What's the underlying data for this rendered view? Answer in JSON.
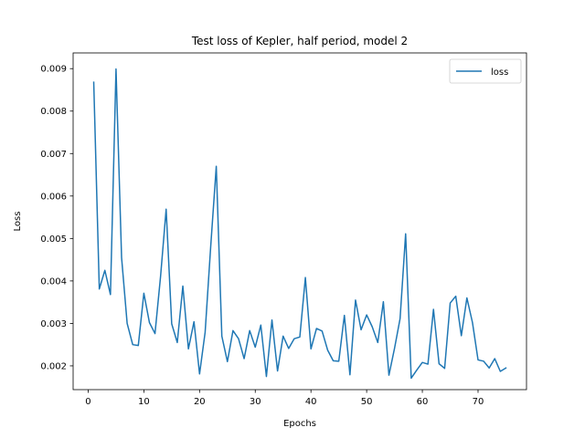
{
  "chart_data": {
    "type": "line",
    "title": "Test loss of Kepler, half period, model 2",
    "xlabel": "Epochs",
    "ylabel": "Loss",
    "xlim": [
      -2.7,
      78.7
    ],
    "ylim": [
      0.00144,
      0.00937
    ],
    "xticks": [
      0,
      10,
      20,
      30,
      40,
      50,
      60,
      70
    ],
    "yticks": [
      0.002,
      0.003,
      0.004,
      0.005,
      0.006,
      0.007,
      0.008,
      0.009
    ],
    "ytick_labels": [
      "0.002",
      "0.003",
      "0.004",
      "0.005",
      "0.006",
      "0.007",
      "0.008",
      "0.009"
    ],
    "grid": false,
    "legend": {
      "position": "top-right",
      "entries": [
        "loss"
      ]
    },
    "colors": {
      "loss": "#1f77b4"
    },
    "series": [
      {
        "name": "loss",
        "x": [
          1,
          2,
          3,
          4,
          5,
          6,
          7,
          8,
          9,
          10,
          11,
          12,
          13,
          14,
          15,
          16,
          17,
          18,
          19,
          20,
          21,
          22,
          23,
          24,
          25,
          26,
          27,
          28,
          29,
          30,
          31,
          32,
          33,
          34,
          35,
          36,
          37,
          38,
          39,
          40,
          41,
          42,
          43,
          44,
          45,
          46,
          47,
          48,
          49,
          50,
          51,
          52,
          53,
          54,
          55,
          56,
          57,
          58,
          59,
          60,
          61,
          62,
          63,
          64,
          65,
          66,
          67,
          68,
          69,
          70,
          71,
          72,
          73,
          74,
          75
        ],
        "values": [
          0.00868,
          0.00381,
          0.00425,
          0.00368,
          0.00899,
          0.00455,
          0.003,
          0.0025,
          0.00248,
          0.00371,
          0.00302,
          0.00276,
          0.00411,
          0.00569,
          0.00299,
          0.00255,
          0.00388,
          0.0024,
          0.00304,
          0.00181,
          0.00279,
          0.00481,
          0.0067,
          0.0027,
          0.0021,
          0.00283,
          0.00264,
          0.00217,
          0.00283,
          0.00244,
          0.00296,
          0.00175,
          0.00308,
          0.00188,
          0.0027,
          0.00241,
          0.00264,
          0.00268,
          0.00408,
          0.0024,
          0.00288,
          0.00282,
          0.00237,
          0.00212,
          0.00211,
          0.00319,
          0.00179,
          0.00355,
          0.00285,
          0.0032,
          0.00292,
          0.00255,
          0.00351,
          0.00178,
          0.00241,
          0.00311,
          0.00511,
          0.00171,
          0.0019,
          0.00208,
          0.00204,
          0.00333,
          0.00205,
          0.00194,
          0.00348,
          0.00364,
          0.00271,
          0.0036,
          0.00302,
          0.00214,
          0.00211,
          0.00195,
          0.00217,
          0.00187,
          0.00195
        ]
      }
    ]
  }
}
